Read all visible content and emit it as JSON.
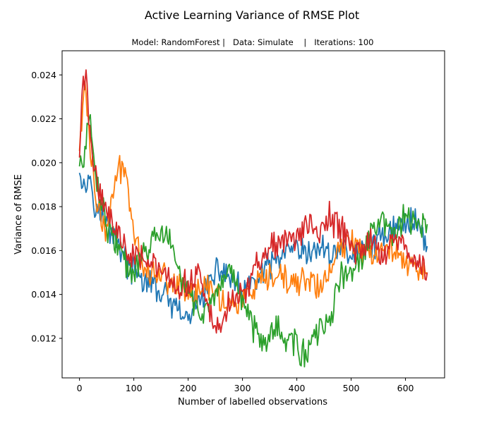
{
  "chart_data": {
    "type": "line",
    "title": "Active Learning Variance of RMSE Plot",
    "subtitle": "Model: RandomForest |   Data: Simulate    |   Iterations: 100",
    "xlabel": "Number of labelled observations",
    "ylabel": "Variance of RMSE",
    "xlim": [
      -32,
      672
    ],
    "ylim": [
      0.0102,
      0.0251
    ],
    "xticks": [
      0,
      100,
      200,
      300,
      400,
      500,
      600
    ],
    "yticks": [
      0.012,
      0.014,
      0.016,
      0.018,
      0.02,
      0.022,
      0.024
    ],
    "ytick_labels": [
      "0.012",
      "0.014",
      "0.016",
      "0.018",
      "0.020",
      "0.022",
      "0.024"
    ],
    "grid": false,
    "legend": false,
    "series": [
      {
        "color": "#1f77b4",
        "x": [
          0,
          10,
          20,
          30,
          40,
          50,
          60,
          70,
          80,
          90,
          100,
          120,
          140,
          160,
          180,
          200,
          220,
          240,
          260,
          280,
          300,
          320,
          340,
          360,
          380,
          400,
          420,
          440,
          460,
          480,
          500,
          520,
          540,
          560,
          580,
          600,
          620,
          640
        ],
        "y": [
          0.02,
          0.0188,
          0.0195,
          0.018,
          0.0176,
          0.0172,
          0.0168,
          0.0165,
          0.0158,
          0.0153,
          0.015,
          0.0146,
          0.0143,
          0.0138,
          0.0132,
          0.0128,
          0.0138,
          0.0145,
          0.0152,
          0.0147,
          0.014,
          0.0145,
          0.015,
          0.0155,
          0.0158,
          0.016,
          0.0157,
          0.0162,
          0.0158,
          0.0162,
          0.0158,
          0.016,
          0.0162,
          0.0168,
          0.017,
          0.0172,
          0.0175,
          0.0162
        ]
      },
      {
        "color": "#ff7f0e",
        "x": [
          0,
          10,
          20,
          30,
          40,
          50,
          60,
          70,
          80,
          90,
          100,
          120,
          140,
          160,
          180,
          200,
          220,
          240,
          260,
          280,
          300,
          320,
          340,
          360,
          380,
          400,
          420,
          440,
          460,
          480,
          500,
          520,
          540,
          560,
          580,
          600,
          620,
          640
        ],
        "y": [
          0.0205,
          0.0238,
          0.0205,
          0.0185,
          0.0172,
          0.0168,
          0.0185,
          0.0195,
          0.0198,
          0.019,
          0.0168,
          0.0152,
          0.015,
          0.0148,
          0.0145,
          0.0143,
          0.014,
          0.0145,
          0.0138,
          0.0135,
          0.0138,
          0.0142,
          0.0145,
          0.0148,
          0.0146,
          0.0145,
          0.0148,
          0.0142,
          0.015,
          0.016,
          0.0165,
          0.0162,
          0.016,
          0.0158,
          0.0163,
          0.0155,
          0.0152,
          0.015
        ]
      },
      {
        "color": "#2ca02c",
        "x": [
          0,
          10,
          20,
          30,
          40,
          50,
          60,
          70,
          80,
          90,
          100,
          120,
          140,
          160,
          180,
          200,
          220,
          240,
          260,
          280,
          300,
          320,
          340,
          360,
          380,
          400,
          410,
          420,
          440,
          460,
          480,
          500,
          520,
          540,
          560,
          580,
          600,
          620,
          640
        ],
        "y": [
          0.0198,
          0.0205,
          0.022,
          0.0195,
          0.0182,
          0.0172,
          0.0168,
          0.0162,
          0.0158,
          0.015,
          0.0148,
          0.016,
          0.0165,
          0.0168,
          0.0152,
          0.014,
          0.0132,
          0.0135,
          0.014,
          0.015,
          0.0138,
          0.0125,
          0.012,
          0.0125,
          0.012,
          0.0118,
          0.0112,
          0.0115,
          0.0122,
          0.0128,
          0.0148,
          0.015,
          0.0155,
          0.017,
          0.0172,
          0.0168,
          0.0175,
          0.017,
          0.0172
        ]
      },
      {
        "color": "#d62728",
        "x": [
          0,
          5,
          10,
          15,
          20,
          30,
          40,
          50,
          60,
          70,
          80,
          90,
          100,
          120,
          140,
          160,
          180,
          200,
          220,
          240,
          260,
          280,
          300,
          320,
          340,
          360,
          380,
          400,
          420,
          440,
          460,
          480,
          500,
          520,
          540,
          560,
          580,
          600,
          620,
          640
        ],
        "y": [
          0.0202,
          0.0232,
          0.024,
          0.023,
          0.021,
          0.0195,
          0.0185,
          0.018,
          0.0172,
          0.0168,
          0.0165,
          0.0158,
          0.016,
          0.0158,
          0.0152,
          0.0148,
          0.014,
          0.0145,
          0.015,
          0.013,
          0.0125,
          0.014,
          0.0138,
          0.015,
          0.016,
          0.0162,
          0.0165,
          0.0165,
          0.0172,
          0.0168,
          0.0175,
          0.017,
          0.0162,
          0.016,
          0.0165,
          0.0158,
          0.0165,
          0.016,
          0.0155,
          0.015
        ]
      }
    ]
  }
}
